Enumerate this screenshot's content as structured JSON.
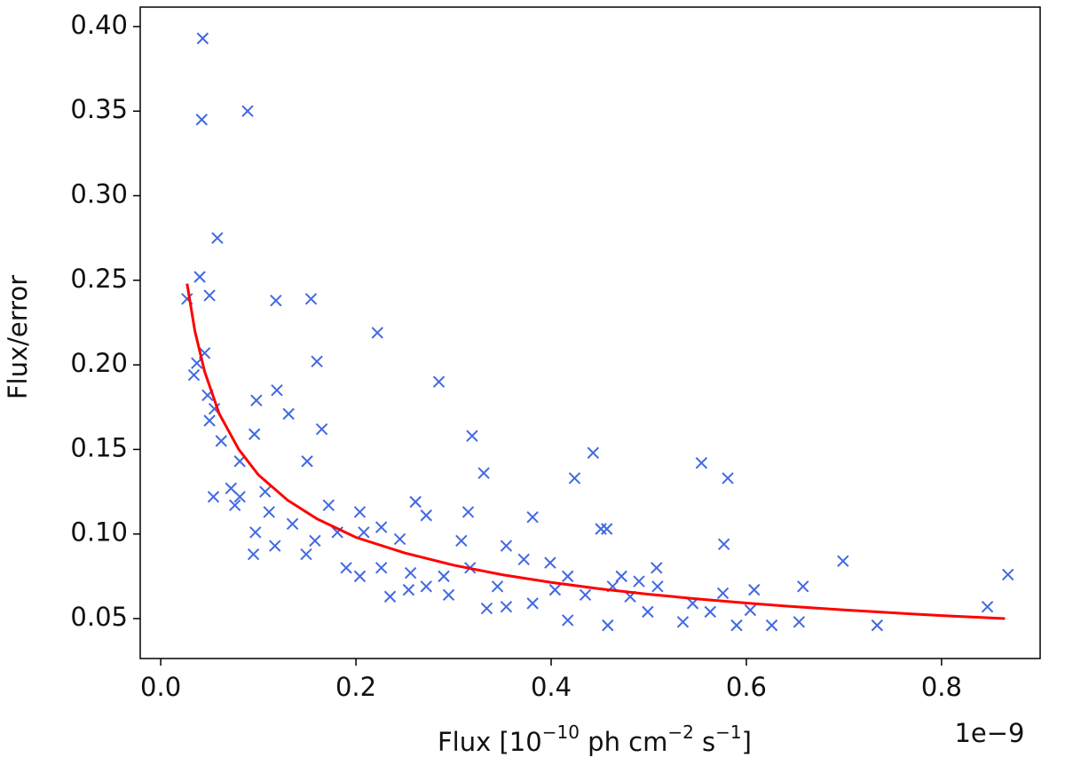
{
  "chart_data": {
    "type": "scatter",
    "xlabel_parts": [
      "Flux [10",
      "−10",
      " ph cm",
      "−2",
      " s",
      "−1",
      "]"
    ],
    "ylabel": "Flux/error",
    "x_offset_text": "1e−9",
    "xlim": [
      -0.021,
      0.901
    ],
    "ylim": [
      0.0264,
      0.4115
    ],
    "xticks": [
      {
        "value": 0,
        "label": "0.0"
      },
      0.2,
      0.4,
      0.6,
      0.8
    ],
    "yticks": [
      0.05,
      {
        "value": 0.1,
        "label": "0.10"
      },
      0.15,
      {
        "value": 0.2,
        "label": "0.20"
      },
      0.25,
      {
        "value": 0.3,
        "label": "0.30"
      },
      0.35,
      {
        "value": 0.4,
        "label": "0.40"
      }
    ],
    "grid": false,
    "series": [
      {
        "type": "scatter",
        "marker": "x",
        "color": "#4169e1",
        "x": [
          0.043,
          0.042,
          0.089,
          0.058,
          0.04,
          0.027,
          0.05,
          0.118,
          0.154,
          0.222,
          0.16,
          0.285,
          0.045,
          0.037,
          0.034,
          0.048,
          0.055,
          0.05,
          0.062,
          0.098,
          0.119,
          0.131,
          0.165,
          0.096,
          0.15,
          0.319,
          0.331,
          0.315,
          0.443,
          0.424,
          0.554,
          0.581,
          0.577,
          0.699,
          0.868,
          0.847,
          0.734,
          0.451,
          0.457,
          0.381,
          0.261,
          0.272,
          0.072,
          0.081,
          0.107,
          0.111,
          0.135,
          0.172,
          0.204,
          0.181,
          0.208,
          0.226,
          0.245,
          0.158,
          0.117,
          0.149,
          0.19,
          0.204,
          0.226,
          0.256,
          0.272,
          0.29,
          0.308,
          0.317,
          0.345,
          0.354,
          0.372,
          0.381,
          0.399,
          0.417,
          0.435,
          0.463,
          0.472,
          0.49,
          0.509,
          0.508,
          0.499,
          0.535,
          0.563,
          0.59,
          0.608,
          0.626,
          0.654,
          0.658,
          0.417,
          0.458,
          0.254,
          0.235,
          0.295,
          0.334,
          0.354,
          0.404,
          0.481,
          0.097,
          0.095,
          0.076,
          0.054,
          0.081,
          0.545,
          0.576,
          0.604
        ],
        "values": [
          0.393,
          0.345,
          0.35,
          0.275,
          0.252,
          0.239,
          0.241,
          0.238,
          0.239,
          0.219,
          0.202,
          0.19,
          0.207,
          0.201,
          0.194,
          0.182,
          0.174,
          0.167,
          0.155,
          0.179,
          0.185,
          0.171,
          0.162,
          0.159,
          0.143,
          0.158,
          0.136,
          0.113,
          0.148,
          0.133,
          0.142,
          0.133,
          0.094,
          0.084,
          0.076,
          0.057,
          0.046,
          0.103,
          0.103,
          0.11,
          0.119,
          0.111,
          0.127,
          0.122,
          0.125,
          0.113,
          0.106,
          0.117,
          0.113,
          0.101,
          0.101,
          0.104,
          0.097,
          0.096,
          0.093,
          0.088,
          0.08,
          0.075,
          0.08,
          0.077,
          0.069,
          0.075,
          0.096,
          0.08,
          0.069,
          0.093,
          0.085,
          0.059,
          0.083,
          0.075,
          0.064,
          0.069,
          0.075,
          0.072,
          0.069,
          0.08,
          0.054,
          0.048,
          0.054,
          0.046,
          0.067,
          0.046,
          0.048,
          0.069,
          0.049,
          0.046,
          0.067,
          0.063,
          0.064,
          0.056,
          0.057,
          0.067,
          0.063,
          0.101,
          0.088,
          0.117,
          0.122,
          0.143,
          0.059,
          0.065,
          0.055
        ]
      },
      {
        "type": "line",
        "color": "#ff0000",
        "x": [
          0.027,
          0.035,
          0.045,
          0.06,
          0.08,
          0.1,
          0.13,
          0.16,
          0.2,
          0.25,
          0.3,
          0.35,
          0.4,
          0.45,
          0.5,
          0.55,
          0.6,
          0.65,
          0.7,
          0.75,
          0.8,
          0.865
        ],
        "values": [
          0.248,
          0.22,
          0.196,
          0.171,
          0.15,
          0.135,
          0.12,
          0.109,
          0.098,
          0.0888,
          0.0816,
          0.0759,
          0.0714,
          0.0676,
          0.0644,
          0.0616,
          0.0592,
          0.057,
          0.0551,
          0.0534,
          0.0518,
          0.05
        ]
      }
    ]
  }
}
